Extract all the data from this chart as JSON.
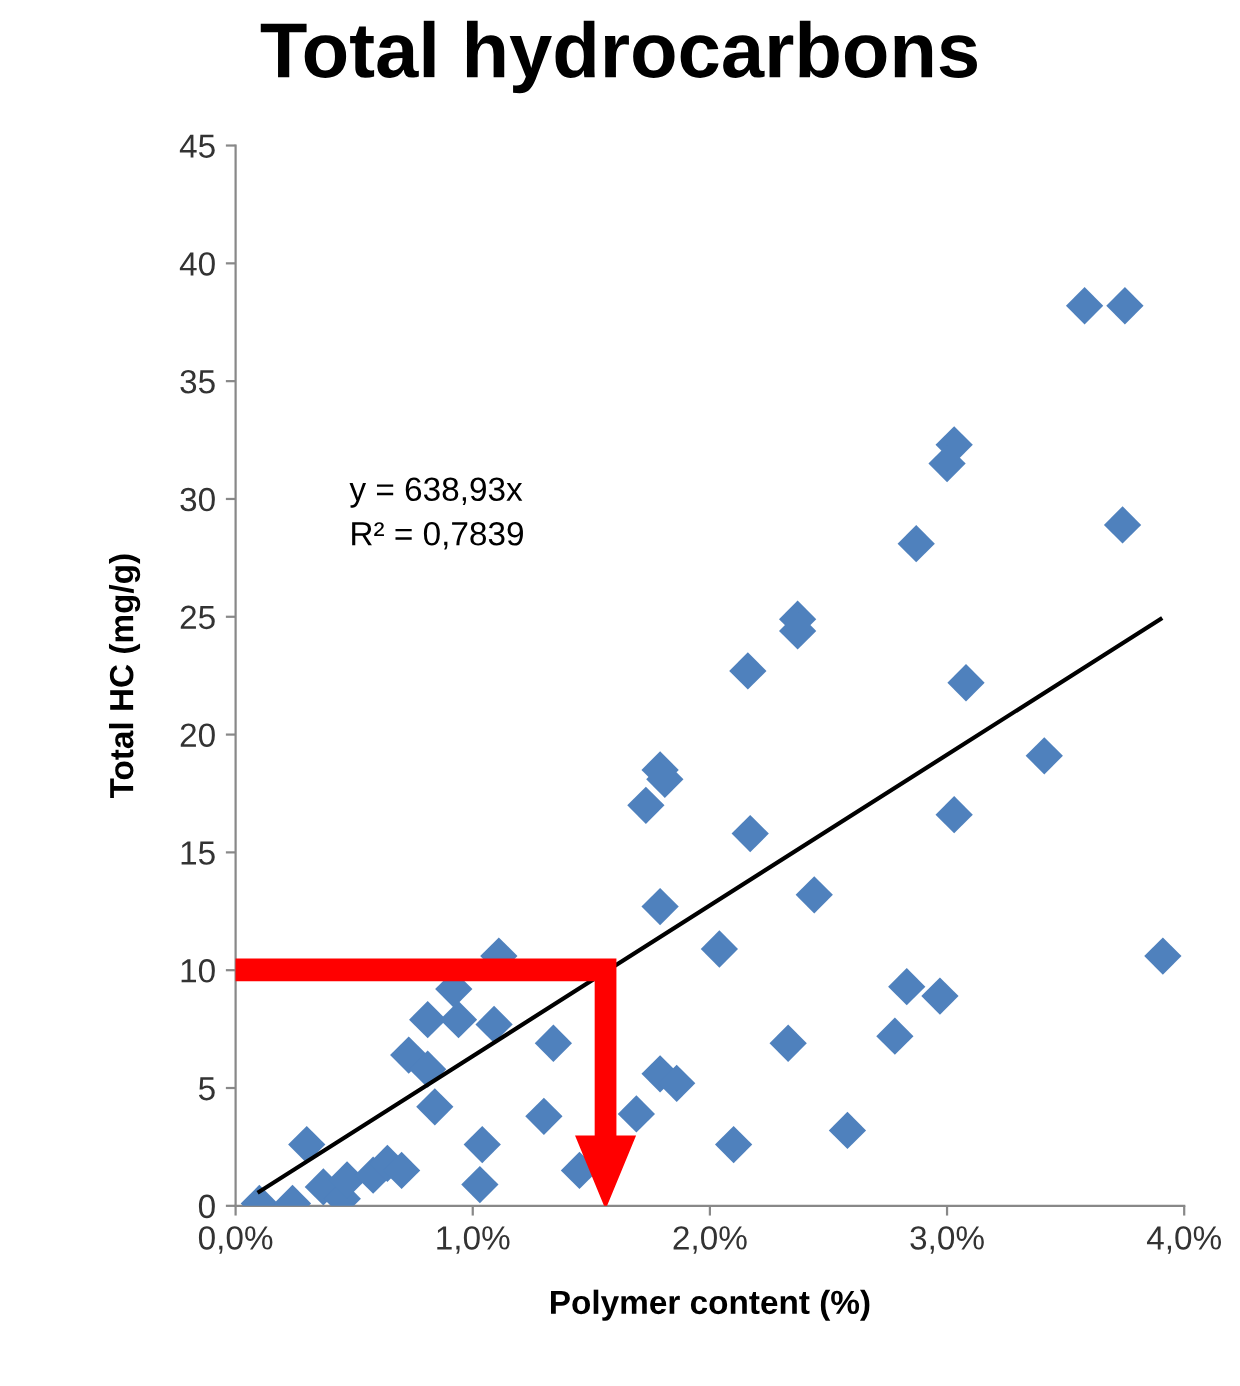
{
  "chart_data": {
    "type": "scatter",
    "title": "Total hydrocarbons",
    "xlabel": "Polymer content (%)",
    "ylabel": "Total HC (mg/g)",
    "xlim": [
      0,
      0.04
    ],
    "ylim": [
      0,
      45
    ],
    "xticks": [
      {
        "value": 0,
        "label": "0,0%"
      },
      {
        "value": 0.01,
        "label": "1,0%"
      },
      {
        "value": 0.02,
        "label": "2,0%"
      },
      {
        "value": 0.03,
        "label": "3,0%"
      },
      {
        "value": 0.04,
        "label": "4,0%"
      }
    ],
    "yticks": [
      0,
      5,
      10,
      15,
      20,
      25,
      30,
      35,
      40,
      45
    ],
    "marker": "diamond",
    "grid": false,
    "legend": false,
    "annotations": [
      "y = 638,93x",
      "R² = 0,7839"
    ],
    "series": [
      {
        "color": "#4f81bd",
        "x": [
          0.001,
          0.0024,
          0.003,
          0.0037,
          0.0045,
          0.0047,
          0.0058,
          0.0064,
          0.007,
          0.0073,
          0.0081,
          0.0084,
          0.0081,
          0.0094,
          0.0092,
          0.0109,
          0.0111,
          0.0104,
          0.0103,
          0.0134,
          0.013,
          0.0145,
          0.0153,
          0.0169,
          0.0179,
          0.0186,
          0.0179,
          0.0173,
          0.0179,
          0.0181,
          0.0204,
          0.0358,
          0.0375,
          0.0303,
          0.03,
          0.0374,
          0.0287,
          0.0237,
          0.0237,
          0.0216,
          0.0308,
          0.0341,
          0.0303,
          0.0217,
          0.0244,
          0.0391,
          0.0283,
          0.0297,
          0.0278,
          0.0233,
          0.021,
          0.0258
        ],
        "values": [
          0.1,
          0.1,
          2.6,
          0.8,
          0.3,
          1.1,
          1.3,
          1.8,
          1.5,
          6.4,
          5.8,
          4.2,
          7.9,
          7.9,
          9.2,
          7.7,
          10.6,
          2.6,
          0.9,
          6.9,
          3.8,
          1.5,
          null,
          3.9,
          5.6,
          5.2,
          12.7,
          17.0,
          18.5,
          18.1,
          10.9,
          38.2,
          38.2,
          32.3,
          31.5,
          28.9,
          28.1,
          24.9,
          24.4,
          22.7,
          22.2,
          19.1,
          16.6,
          15.8,
          13.2,
          10.6,
          9.3,
          8.9,
          7.2,
          6.9,
          2.6,
          3.2
        ]
      },
      {
        "type": "line",
        "color": "#000000",
        "x": [
          0.001,
          0.039
        ],
        "values": [
          0.6,
          24.9
        ],
        "marker": "none"
      }
    ]
  }
}
